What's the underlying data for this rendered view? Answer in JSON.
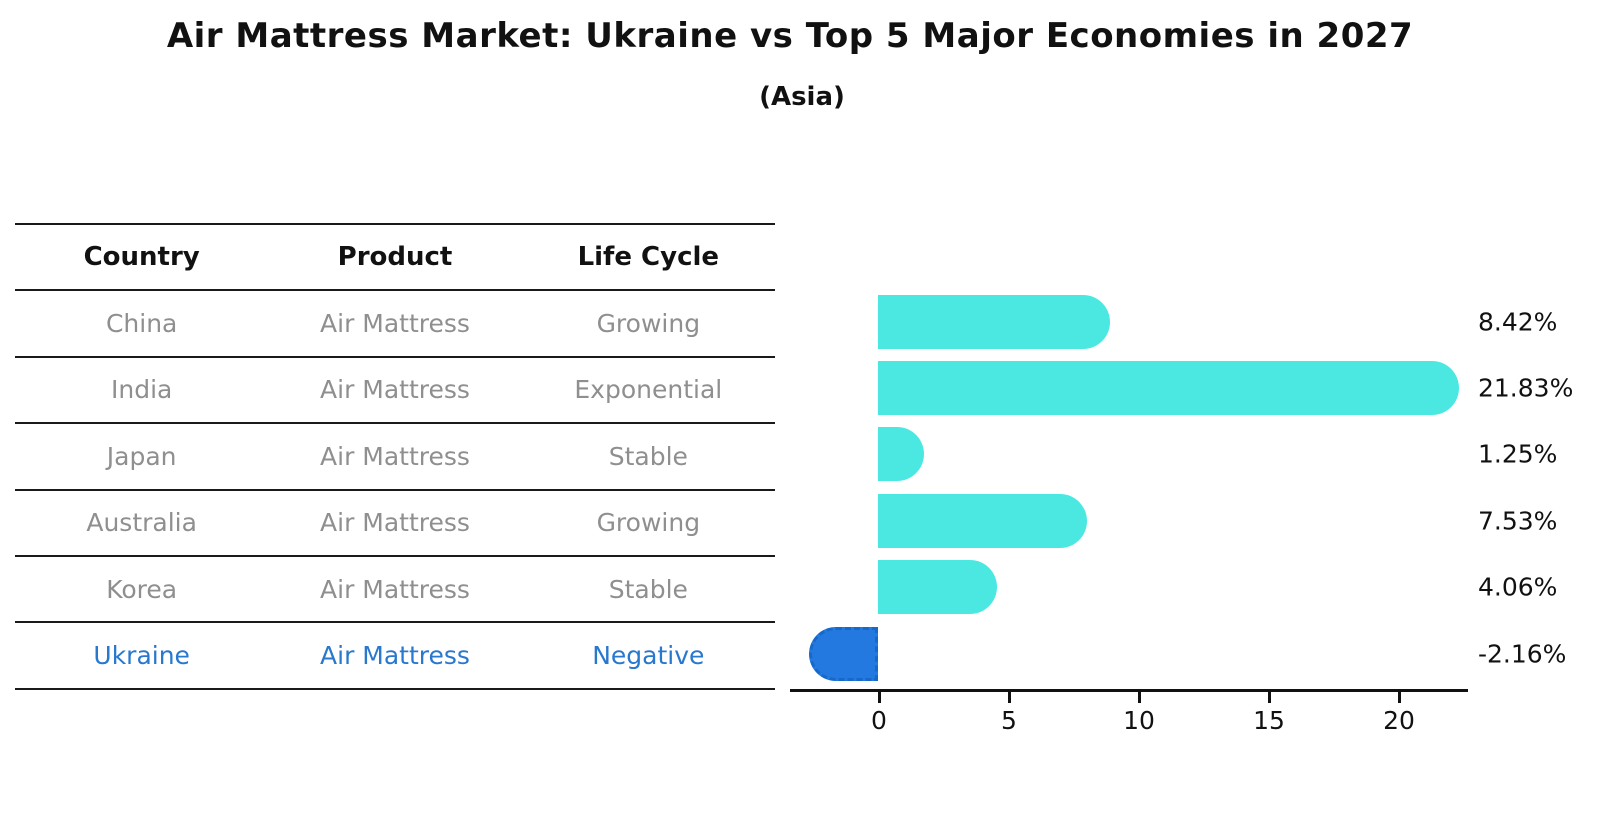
{
  "title": "Air Mattress Market: Ukraine vs Top 5 Major Economies in 2027",
  "subtitle": "(Asia)",
  "table": {
    "headers": [
      "Country",
      "Product",
      "Life Cycle"
    ],
    "rows": [
      {
        "country": "China",
        "product": "Air Mattress",
        "life_cycle": "Growing"
      },
      {
        "country": "India",
        "product": "Air Mattress",
        "life_cycle": "Exponential"
      },
      {
        "country": "Japan",
        "product": "Air Mattress",
        "life_cycle": "Stable"
      },
      {
        "country": "Australia",
        "product": "Air Mattress",
        "life_cycle": "Growing"
      },
      {
        "country": "Korea",
        "product": "Air Mattress",
        "life_cycle": "Stable"
      },
      {
        "country": "Ukraine",
        "product": "Air Mattress",
        "life_cycle": "Negative"
      }
    ]
  },
  "chart_data": {
    "type": "bar",
    "orientation": "horizontal",
    "categories": [
      "China",
      "India",
      "Japan",
      "Australia",
      "Korea",
      "Ukraine"
    ],
    "values": [
      8.42,
      21.83,
      1.25,
      7.53,
      4.06,
      -2.16
    ],
    "value_labels": [
      "8.42%",
      "21.83%",
      "1.25%",
      "7.53%",
      "4.06%",
      "-2.16%"
    ],
    "xticks": [
      "0",
      "5",
      "10",
      "15",
      "20"
    ],
    "xtick_values": [
      0,
      5,
      10,
      15,
      20
    ],
    "xlim": [
      -3.4,
      22.7
    ],
    "ylabel": "",
    "xlabel": "",
    "grid": false,
    "legend": "none",
    "highlight_index": 5
  },
  "colors": {
    "bar_fill": "#4be8e2",
    "highlight_fill": "#2379df",
    "highlight_border": "#1668c9",
    "axis": "#111111",
    "table_text": "#8f8f8f",
    "highlight_text": "#2878ce"
  }
}
